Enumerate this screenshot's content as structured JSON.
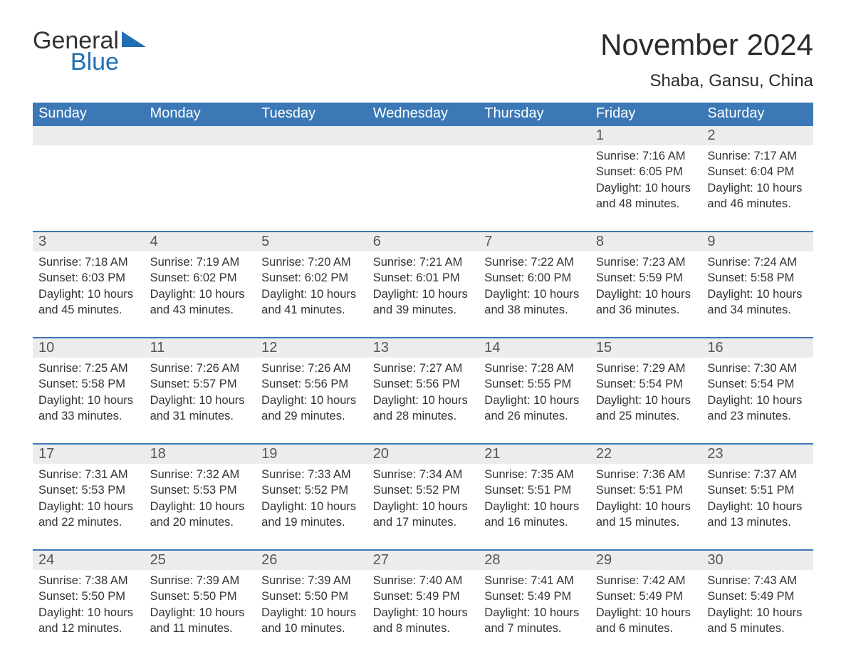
{
  "logo": {
    "general": "General",
    "blue": "Blue"
  },
  "title": "November 2024",
  "location": "Shaba, Gansu, China",
  "colors": {
    "header_bg": "#3b78b5",
    "header_text": "#ffffff",
    "daynum_bg": "#ececec",
    "row_border": "#3b78b5",
    "body_text": "#333333",
    "logo_blue": "#1f6fb2",
    "background": "#ffffff"
  },
  "font": {
    "family": "Segoe UI",
    "title_size_pt": 32,
    "header_size_pt": 15,
    "body_size_pt": 12
  },
  "day_names": [
    "Sunday",
    "Monday",
    "Tuesday",
    "Wednesday",
    "Thursday",
    "Friday",
    "Saturday"
  ],
  "labels": {
    "sunrise": "Sunrise: ",
    "sunset": "Sunset: ",
    "daylight": "Daylight: "
  },
  "weeks": [
    [
      null,
      null,
      null,
      null,
      null,
      {
        "d": "1",
        "sunrise": "7:16 AM",
        "sunset": "6:05 PM",
        "daylight": "10 hours and 48 minutes."
      },
      {
        "d": "2",
        "sunrise": "7:17 AM",
        "sunset": "6:04 PM",
        "daylight": "10 hours and 46 minutes."
      }
    ],
    [
      {
        "d": "3",
        "sunrise": "7:18 AM",
        "sunset": "6:03 PM",
        "daylight": "10 hours and 45 minutes."
      },
      {
        "d": "4",
        "sunrise": "7:19 AM",
        "sunset": "6:02 PM",
        "daylight": "10 hours and 43 minutes."
      },
      {
        "d": "5",
        "sunrise": "7:20 AM",
        "sunset": "6:02 PM",
        "daylight": "10 hours and 41 minutes."
      },
      {
        "d": "6",
        "sunrise": "7:21 AM",
        "sunset": "6:01 PM",
        "daylight": "10 hours and 39 minutes."
      },
      {
        "d": "7",
        "sunrise": "7:22 AM",
        "sunset": "6:00 PM",
        "daylight": "10 hours and 38 minutes."
      },
      {
        "d": "8",
        "sunrise": "7:23 AM",
        "sunset": "5:59 PM",
        "daylight": "10 hours and 36 minutes."
      },
      {
        "d": "9",
        "sunrise": "7:24 AM",
        "sunset": "5:58 PM",
        "daylight": "10 hours and 34 minutes."
      }
    ],
    [
      {
        "d": "10",
        "sunrise": "7:25 AM",
        "sunset": "5:58 PM",
        "daylight": "10 hours and 33 minutes."
      },
      {
        "d": "11",
        "sunrise": "7:26 AM",
        "sunset": "5:57 PM",
        "daylight": "10 hours and 31 minutes."
      },
      {
        "d": "12",
        "sunrise": "7:26 AM",
        "sunset": "5:56 PM",
        "daylight": "10 hours and 29 minutes."
      },
      {
        "d": "13",
        "sunrise": "7:27 AM",
        "sunset": "5:56 PM",
        "daylight": "10 hours and 28 minutes."
      },
      {
        "d": "14",
        "sunrise": "7:28 AM",
        "sunset": "5:55 PM",
        "daylight": "10 hours and 26 minutes."
      },
      {
        "d": "15",
        "sunrise": "7:29 AM",
        "sunset": "5:54 PM",
        "daylight": "10 hours and 25 minutes."
      },
      {
        "d": "16",
        "sunrise": "7:30 AM",
        "sunset": "5:54 PM",
        "daylight": "10 hours and 23 minutes."
      }
    ],
    [
      {
        "d": "17",
        "sunrise": "7:31 AM",
        "sunset": "5:53 PM",
        "daylight": "10 hours and 22 minutes."
      },
      {
        "d": "18",
        "sunrise": "7:32 AM",
        "sunset": "5:53 PM",
        "daylight": "10 hours and 20 minutes."
      },
      {
        "d": "19",
        "sunrise": "7:33 AM",
        "sunset": "5:52 PM",
        "daylight": "10 hours and 19 minutes."
      },
      {
        "d": "20",
        "sunrise": "7:34 AM",
        "sunset": "5:52 PM",
        "daylight": "10 hours and 17 minutes."
      },
      {
        "d": "21",
        "sunrise": "7:35 AM",
        "sunset": "5:51 PM",
        "daylight": "10 hours and 16 minutes."
      },
      {
        "d": "22",
        "sunrise": "7:36 AM",
        "sunset": "5:51 PM",
        "daylight": "10 hours and 15 minutes."
      },
      {
        "d": "23",
        "sunrise": "7:37 AM",
        "sunset": "5:51 PM",
        "daylight": "10 hours and 13 minutes."
      }
    ],
    [
      {
        "d": "24",
        "sunrise": "7:38 AM",
        "sunset": "5:50 PM",
        "daylight": "10 hours and 12 minutes."
      },
      {
        "d": "25",
        "sunrise": "7:39 AM",
        "sunset": "5:50 PM",
        "daylight": "10 hours and 11 minutes."
      },
      {
        "d": "26",
        "sunrise": "7:39 AM",
        "sunset": "5:50 PM",
        "daylight": "10 hours and 10 minutes."
      },
      {
        "d": "27",
        "sunrise": "7:40 AM",
        "sunset": "5:49 PM",
        "daylight": "10 hours and 8 minutes."
      },
      {
        "d": "28",
        "sunrise": "7:41 AM",
        "sunset": "5:49 PM",
        "daylight": "10 hours and 7 minutes."
      },
      {
        "d": "29",
        "sunrise": "7:42 AM",
        "sunset": "5:49 PM",
        "daylight": "10 hours and 6 minutes."
      },
      {
        "d": "30",
        "sunrise": "7:43 AM",
        "sunset": "5:49 PM",
        "daylight": "10 hours and 5 minutes."
      }
    ]
  ]
}
